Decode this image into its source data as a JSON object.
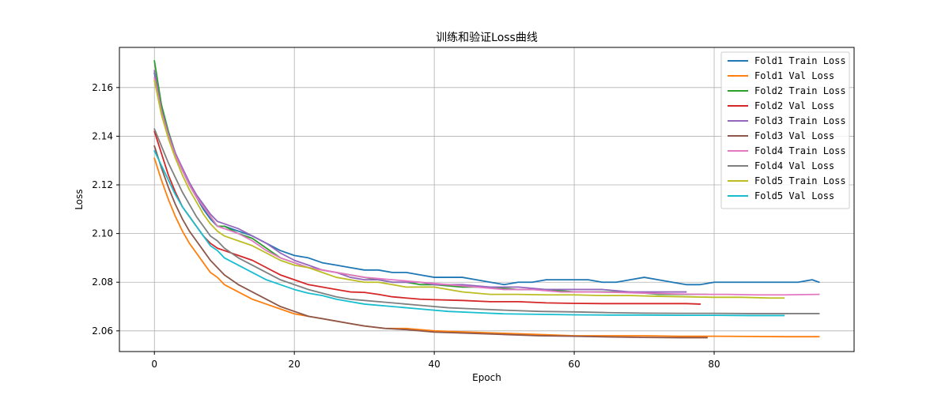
{
  "chart_data": {
    "type": "line",
    "title": "训练和验证Loss曲线",
    "xlabel": "Epoch",
    "ylabel": "Loss",
    "xlim": [
      -5,
      100
    ],
    "ylim": [
      2.0515,
      2.1765
    ],
    "xticks": [
      0,
      20,
      40,
      60,
      80
    ],
    "yticks": [
      2.06,
      2.08,
      2.1,
      2.12,
      2.14,
      2.16
    ],
    "xtick_labels": [
      "0",
      "20",
      "40",
      "60",
      "80"
    ],
    "ytick_labels": [
      "2.06",
      "2.08",
      "2.10",
      "2.12",
      "2.14",
      "2.16"
    ],
    "grid": true,
    "legend_position": "top-right",
    "series": [
      {
        "name": "Fold1 Train Loss",
        "color": "#1f77b4",
        "x": [
          0,
          1,
          2,
          3,
          4,
          5,
          6,
          7,
          8,
          9,
          10,
          12,
          14,
          16,
          18,
          20,
          22,
          24,
          26,
          28,
          30,
          32,
          34,
          36,
          38,
          40,
          42,
          44,
          46,
          48,
          50,
          52,
          54,
          56,
          58,
          60,
          62,
          64,
          66,
          68,
          70,
          72,
          74,
          76,
          78,
          80,
          82,
          84,
          86,
          88,
          90,
          92,
          94,
          95
        ],
        "y": [
          2.166,
          2.15,
          2.14,
          2.133,
          2.126,
          2.12,
          2.115,
          2.11,
          2.106,
          2.103,
          2.103,
          2.101,
          2.099,
          2.096,
          2.093,
          2.091,
          2.09,
          2.088,
          2.087,
          2.086,
          2.085,
          2.085,
          2.084,
          2.084,
          2.083,
          2.082,
          2.082,
          2.082,
          2.081,
          2.08,
          2.079,
          2.08,
          2.08,
          2.081,
          2.081,
          2.081,
          2.081,
          2.08,
          2.08,
          2.081,
          2.082,
          2.081,
          2.08,
          2.079,
          2.079,
          2.08,
          2.08,
          2.08,
          2.08,
          2.08,
          2.08,
          2.08,
          2.081,
          2.08
        ]
      },
      {
        "name": "Fold1 Val Loss",
        "color": "#ff7f0e",
        "x": [
          0,
          1,
          2,
          3,
          4,
          5,
          6,
          7,
          8,
          9,
          10,
          12,
          14,
          16,
          18,
          20,
          22,
          24,
          26,
          28,
          30,
          33,
          36,
          40,
          45,
          50,
          55,
          60,
          65,
          70,
          75,
          80,
          85,
          90,
          95
        ],
        "y": [
          2.131,
          2.122,
          2.114,
          2.107,
          2.101,
          2.096,
          2.092,
          2.088,
          2.084,
          2.082,
          2.079,
          2.076,
          2.073,
          2.071,
          2.069,
          2.067,
          2.066,
          2.065,
          2.064,
          2.063,
          2.062,
          2.061,
          2.061,
          2.06,
          2.0595,
          2.059,
          2.0585,
          2.058,
          2.058,
          2.058,
          2.0578,
          2.0578,
          2.0577,
          2.0576,
          2.0576
        ]
      },
      {
        "name": "Fold2 Train Loss",
        "color": "#2ca02c",
        "x": [
          0,
          1,
          2,
          3,
          4,
          5,
          6,
          7,
          8,
          9,
          10,
          12,
          14,
          16,
          18,
          20,
          22,
          24,
          26,
          28,
          30,
          32,
          34,
          36,
          38,
          40,
          44,
          48,
          52,
          56,
          60,
          64,
          68,
          72,
          76,
          79
        ],
        "y": [
          2.171,
          2.153,
          2.142,
          2.133,
          2.126,
          2.12,
          2.115,
          2.111,
          2.107,
          2.103,
          2.103,
          2.1,
          2.098,
          2.094,
          2.09,
          2.088,
          2.086,
          2.085,
          2.084,
          2.083,
          2.082,
          2.081,
          2.08,
          2.08,
          2.079,
          2.079,
          2.078,
          2.078,
          2.077,
          2.077,
          2.076,
          2.076,
          2.076,
          2.075,
          2.075,
          2.075
        ]
      },
      {
        "name": "Fold2 Val Loss",
        "color": "#d62728",
        "x": [
          0,
          1,
          2,
          3,
          4,
          5,
          6,
          7,
          8,
          9,
          10,
          12,
          14,
          16,
          18,
          20,
          22,
          24,
          26,
          28,
          30,
          32,
          34,
          36,
          38,
          40,
          44,
          48,
          52,
          56,
          60,
          64,
          68,
          72,
          76,
          78
        ],
        "y": [
          2.142,
          2.133,
          2.124,
          2.117,
          2.111,
          2.107,
          2.103,
          2.099,
          2.096,
          2.094,
          2.093,
          2.091,
          2.089,
          2.086,
          2.083,
          2.081,
          2.079,
          2.078,
          2.077,
          2.076,
          2.0758,
          2.075,
          2.074,
          2.0735,
          2.073,
          2.0728,
          2.0725,
          2.072,
          2.072,
          2.0715,
          2.0713,
          2.0712,
          2.0712,
          2.0712,
          2.0712,
          2.071
        ]
      },
      {
        "name": "Fold3 Train Loss",
        "color": "#9467bd",
        "x": [
          0,
          1,
          2,
          3,
          4,
          5,
          6,
          7,
          8,
          9,
          10,
          12,
          14,
          16,
          18,
          20,
          22,
          24,
          26,
          28,
          30,
          32,
          34,
          36,
          38,
          40,
          44,
          48,
          52,
          56,
          60,
          64,
          68,
          72,
          76
        ],
        "y": [
          2.167,
          2.151,
          2.141,
          2.133,
          2.127,
          2.121,
          2.116,
          2.112,
          2.108,
          2.105,
          2.104,
          2.102,
          2.099,
          2.096,
          2.092,
          2.089,
          2.087,
          2.085,
          2.084,
          2.082,
          2.081,
          2.081,
          2.08,
          2.08,
          2.08,
          2.079,
          2.079,
          2.078,
          2.078,
          2.077,
          2.077,
          2.077,
          2.076,
          2.076,
          2.076
        ]
      },
      {
        "name": "Fold3 Val Loss",
        "color": "#8c564b",
        "x": [
          0,
          1,
          2,
          3,
          4,
          5,
          6,
          7,
          8,
          9,
          10,
          12,
          14,
          16,
          18,
          20,
          22,
          24,
          26,
          28,
          30,
          33,
          36,
          40,
          45,
          50,
          55,
          60,
          65,
          70,
          75,
          79
        ],
        "y": [
          2.136,
          2.127,
          2.119,
          2.112,
          2.106,
          2.101,
          2.097,
          2.093,
          2.089,
          2.086,
          2.083,
          2.079,
          2.076,
          2.073,
          2.07,
          2.068,
          2.066,
          2.065,
          2.064,
          2.063,
          2.062,
          2.061,
          2.0605,
          2.0595,
          2.059,
          2.0585,
          2.058,
          2.0578,
          2.0575,
          2.0573,
          2.0572,
          2.0572
        ]
      },
      {
        "name": "Fold4 Train Loss",
        "color": "#e377c2",
        "x": [
          0,
          1,
          2,
          3,
          4,
          5,
          6,
          7,
          8,
          9,
          10,
          12,
          14,
          16,
          18,
          20,
          22,
          24,
          26,
          28,
          30,
          34,
          38,
          42,
          46,
          50,
          54,
          58,
          62,
          66,
          70,
          74,
          78,
          82,
          86,
          90,
          95
        ],
        "y": [
          2.164,
          2.15,
          2.14,
          2.132,
          2.126,
          2.12,
          2.115,
          2.111,
          2.107,
          2.103,
          2.102,
          2.1,
          2.097,
          2.093,
          2.09,
          2.088,
          2.086,
          2.085,
          2.084,
          2.083,
          2.082,
          2.081,
          2.08,
          2.079,
          2.078,
          2.077,
          2.077,
          2.076,
          2.076,
          2.0758,
          2.0755,
          2.0752,
          2.075,
          2.075,
          2.0748,
          2.0748,
          2.075
        ]
      },
      {
        "name": "Fold4 Val Loss",
        "color": "#7f7f7f",
        "x": [
          0,
          1,
          2,
          3,
          4,
          5,
          6,
          7,
          8,
          9,
          10,
          12,
          14,
          16,
          18,
          20,
          22,
          24,
          26,
          28,
          30,
          34,
          38,
          42,
          46,
          50,
          55,
          60,
          65,
          70,
          75,
          80,
          85,
          90,
          95
        ],
        "y": [
          2.143,
          2.136,
          2.129,
          2.123,
          2.117,
          2.112,
          2.107,
          2.103,
          2.099,
          2.097,
          2.094,
          2.09,
          2.087,
          2.084,
          2.081,
          2.079,
          2.077,
          2.0755,
          2.074,
          2.073,
          2.0725,
          2.0715,
          2.0705,
          2.0695,
          2.069,
          2.0685,
          2.068,
          2.0678,
          2.0675,
          2.0673,
          2.0672,
          2.0672,
          2.0671,
          2.0671,
          2.0671
        ]
      },
      {
        "name": "Fold5 Train Loss",
        "color": "#bcbd22",
        "x": [
          0,
          1,
          2,
          3,
          4,
          5,
          6,
          7,
          8,
          9,
          10,
          12,
          14,
          16,
          18,
          20,
          22,
          24,
          26,
          28,
          30,
          32,
          34,
          36,
          38,
          40,
          44,
          48,
          52,
          56,
          60,
          64,
          68,
          72,
          76,
          80,
          84,
          88,
          90
        ],
        "y": [
          2.163,
          2.149,
          2.139,
          2.131,
          2.124,
          2.118,
          2.113,
          2.108,
          2.104,
          2.101,
          2.099,
          2.097,
          2.095,
          2.092,
          2.089,
          2.087,
          2.086,
          2.084,
          2.082,
          2.081,
          2.08,
          2.08,
          2.079,
          2.078,
          2.078,
          2.078,
          2.076,
          2.075,
          2.075,
          2.0748,
          2.0748,
          2.0745,
          2.0745,
          2.0742,
          2.074,
          2.0738,
          2.0738,
          2.0735,
          2.0735
        ]
      },
      {
        "name": "Fold5 Val Loss",
        "color": "#17becf",
        "x": [
          0,
          1,
          2,
          3,
          4,
          5,
          6,
          7,
          8,
          9,
          10,
          12,
          14,
          16,
          18,
          20,
          22,
          24,
          26,
          28,
          30,
          34,
          38,
          42,
          46,
          50,
          55,
          60,
          65,
          70,
          75,
          80,
          85,
          90
        ],
        "y": [
          2.134,
          2.128,
          2.122,
          2.116,
          2.111,
          2.107,
          2.103,
          2.099,
          2.095,
          2.093,
          2.09,
          2.087,
          2.084,
          2.081,
          2.079,
          2.077,
          2.0755,
          2.0745,
          2.073,
          2.072,
          2.071,
          2.07,
          2.069,
          2.068,
          2.0675,
          2.067,
          2.0668,
          2.0666,
          2.0665,
          2.0665,
          2.0664,
          2.0664,
          2.0663,
          2.0663
        ]
      }
    ]
  }
}
